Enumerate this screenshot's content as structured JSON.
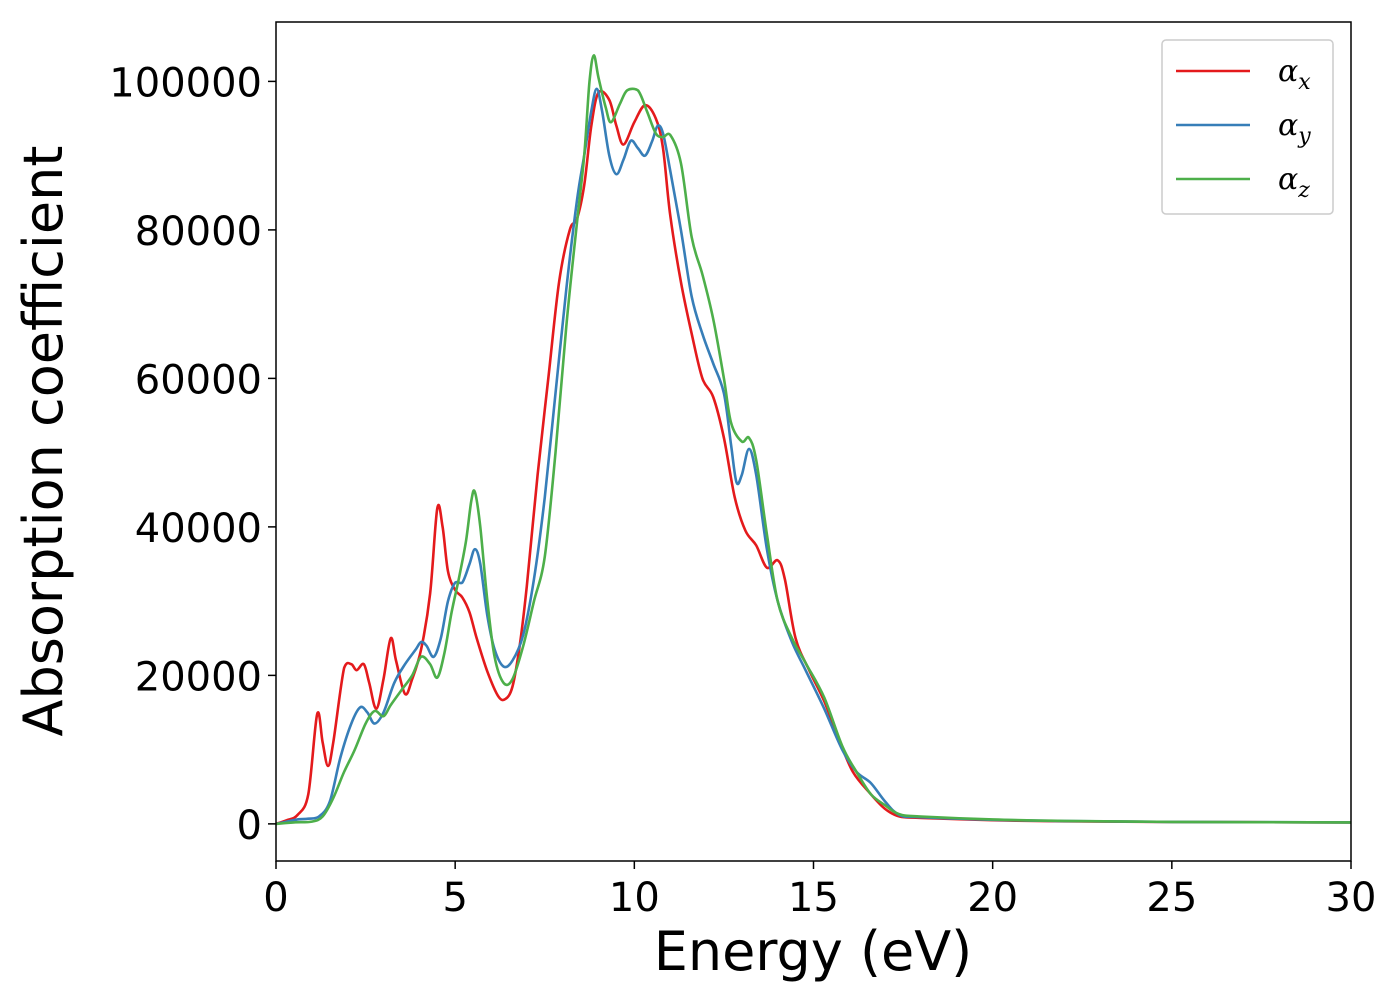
{
  "chart_data": {
    "type": "line",
    "xlabel": "Energy (eV)",
    "ylabel": "Absorption coefficient",
    "xlim": [
      0,
      30
    ],
    "ylim": [
      -5000,
      108000
    ],
    "xticks": [
      0,
      5,
      10,
      15,
      20,
      25,
      30
    ],
    "yticks": [
      0,
      20000,
      40000,
      60000,
      80000,
      100000
    ],
    "xtick_labels": [
      "0",
      "5",
      "10",
      "15",
      "20",
      "25",
      "30"
    ],
    "ytick_labels": [
      "0",
      "20000",
      "40000",
      "60000",
      "80000",
      "100000"
    ],
    "grid": false,
    "legend_position": "top-right",
    "series": [
      {
        "name": "α",
        "subscript": "x",
        "color": "#e41a1c",
        "points": [
          [
            0,
            0
          ],
          [
            0.3,
            500
          ],
          [
            0.6,
            1200
          ],
          [
            0.9,
            4000
          ],
          [
            1.15,
            14800
          ],
          [
            1.3,
            11000
          ],
          [
            1.45,
            7800
          ],
          [
            1.6,
            11000
          ],
          [
            1.9,
            21000
          ],
          [
            2.1,
            21500
          ],
          [
            2.25,
            20700
          ],
          [
            2.45,
            21500
          ],
          [
            2.6,
            19000
          ],
          [
            2.8,
            15500
          ],
          [
            3.0,
            19500
          ],
          [
            3.2,
            25000
          ],
          [
            3.35,
            22000
          ],
          [
            3.6,
            17500
          ],
          [
            3.8,
            19500
          ],
          [
            4.05,
            23500
          ],
          [
            4.3,
            31000
          ],
          [
            4.5,
            42500
          ],
          [
            4.65,
            40000
          ],
          [
            4.8,
            34000
          ],
          [
            5.0,
            31500
          ],
          [
            5.2,
            30500
          ],
          [
            5.4,
            28500
          ],
          [
            5.6,
            25000
          ],
          [
            5.9,
            20500
          ],
          [
            6.2,
            17200
          ],
          [
            6.4,
            16800
          ],
          [
            6.6,
            18500
          ],
          [
            6.8,
            24000
          ],
          [
            7.0,
            32000
          ],
          [
            7.3,
            47000
          ],
          [
            7.6,
            60000
          ],
          [
            7.9,
            73000
          ],
          [
            8.2,
            80000
          ],
          [
            8.4,
            81500
          ],
          [
            8.6,
            86000
          ],
          [
            8.8,
            94000
          ],
          [
            9.0,
            98500
          ],
          [
            9.3,
            97500
          ],
          [
            9.5,
            94000
          ],
          [
            9.7,
            91500
          ],
          [
            10.0,
            94500
          ],
          [
            10.3,
            96800
          ],
          [
            10.6,
            95000
          ],
          [
            10.8,
            91000
          ],
          [
            11.0,
            82000
          ],
          [
            11.3,
            73000
          ],
          [
            11.6,
            66000
          ],
          [
            11.9,
            60000
          ],
          [
            12.2,
            57500
          ],
          [
            12.5,
            52000
          ],
          [
            12.8,
            44000
          ],
          [
            13.1,
            39500
          ],
          [
            13.4,
            37500
          ],
          [
            13.7,
            34500
          ],
          [
            14.0,
            35500
          ],
          [
            14.2,
            33000
          ],
          [
            14.5,
            25000
          ],
          [
            14.9,
            20500
          ],
          [
            15.3,
            16500
          ],
          [
            15.7,
            11500
          ],
          [
            16.1,
            7000
          ],
          [
            16.6,
            4000
          ],
          [
            17.0,
            2000
          ],
          [
            17.4,
            1000
          ],
          [
            18,
            800
          ],
          [
            20,
            500
          ],
          [
            22,
            350
          ],
          [
            25,
            250
          ],
          [
            30,
            200
          ]
        ]
      },
      {
        "name": "α",
        "subscript": "y",
        "color": "#377eb8",
        "points": [
          [
            0,
            0
          ],
          [
            0.3,
            300
          ],
          [
            0.6,
            600
          ],
          [
            0.9,
            700
          ],
          [
            1.2,
            1000
          ],
          [
            1.5,
            3000
          ],
          [
            1.8,
            9000
          ],
          [
            2.1,
            13500
          ],
          [
            2.35,
            15700
          ],
          [
            2.55,
            15000
          ],
          [
            2.75,
            13500
          ],
          [
            3.0,
            15000
          ],
          [
            3.3,
            19000
          ],
          [
            3.6,
            21500
          ],
          [
            3.9,
            23500
          ],
          [
            4.05,
            24500
          ],
          [
            4.2,
            24000
          ],
          [
            4.4,
            22500
          ],
          [
            4.6,
            25000
          ],
          [
            4.8,
            30000
          ],
          [
            5.0,
            32500
          ],
          [
            5.2,
            32500
          ],
          [
            5.4,
            35000
          ],
          [
            5.55,
            37000
          ],
          [
            5.7,
            35000
          ],
          [
            5.9,
            28000
          ],
          [
            6.1,
            23500
          ],
          [
            6.35,
            21200
          ],
          [
            6.6,
            22000
          ],
          [
            6.9,
            25500
          ],
          [
            7.2,
            33000
          ],
          [
            7.5,
            44000
          ],
          [
            7.8,
            58000
          ],
          [
            8.1,
            72000
          ],
          [
            8.4,
            84000
          ],
          [
            8.6,
            90000
          ],
          [
            8.8,
            96000
          ],
          [
            8.95,
            99000
          ],
          [
            9.1,
            96000
          ],
          [
            9.3,
            90000
          ],
          [
            9.5,
            87500
          ],
          [
            9.7,
            89500
          ],
          [
            9.9,
            92000
          ],
          [
            10.1,
            91000
          ],
          [
            10.3,
            90000
          ],
          [
            10.5,
            92000
          ],
          [
            10.65,
            94000
          ],
          [
            10.8,
            93000
          ],
          [
            11.0,
            88000
          ],
          [
            11.3,
            80000
          ],
          [
            11.6,
            71000
          ],
          [
            11.9,
            66000
          ],
          [
            12.2,
            62000
          ],
          [
            12.5,
            58000
          ],
          [
            12.7,
            51000
          ],
          [
            12.85,
            46000
          ],
          [
            13.0,
            47000
          ],
          [
            13.2,
            50500
          ],
          [
            13.4,
            47000
          ],
          [
            13.7,
            37000
          ],
          [
            14.0,
            30000
          ],
          [
            14.4,
            24500
          ],
          [
            14.8,
            20500
          ],
          [
            15.3,
            15500
          ],
          [
            15.8,
            10000
          ],
          [
            16.2,
            7000
          ],
          [
            16.6,
            5500
          ],
          [
            17.0,
            3000
          ],
          [
            17.4,
            1200
          ],
          [
            18,
            900
          ],
          [
            20,
            550
          ],
          [
            22,
            380
          ],
          [
            25,
            260
          ],
          [
            30,
            200
          ]
        ]
      },
      {
        "name": "α",
        "subscript": "z",
        "color": "#4daf4a",
        "points": [
          [
            0,
            0
          ],
          [
            0.5,
            200
          ],
          [
            1.0,
            300
          ],
          [
            1.3,
            1000
          ],
          [
            1.6,
            3500
          ],
          [
            1.9,
            7000
          ],
          [
            2.2,
            10000
          ],
          [
            2.5,
            13500
          ],
          [
            2.75,
            15200
          ],
          [
            3.0,
            14500
          ],
          [
            3.2,
            16000
          ],
          [
            3.5,
            18000
          ],
          [
            3.8,
            20000
          ],
          [
            4.05,
            22500
          ],
          [
            4.3,
            21500
          ],
          [
            4.5,
            19700
          ],
          [
            4.7,
            23000
          ],
          [
            4.9,
            28500
          ],
          [
            5.1,
            33000
          ],
          [
            5.3,
            38000
          ],
          [
            5.45,
            43500
          ],
          [
            5.55,
            44700
          ],
          [
            5.7,
            40000
          ],
          [
            5.9,
            30000
          ],
          [
            6.1,
            22500
          ],
          [
            6.35,
            19000
          ],
          [
            6.6,
            19500
          ],
          [
            6.9,
            24000
          ],
          [
            7.2,
            30000
          ],
          [
            7.5,
            36000
          ],
          [
            7.8,
            50000
          ],
          [
            8.1,
            67000
          ],
          [
            8.4,
            81000
          ],
          [
            8.6,
            90000
          ],
          [
            8.75,
            100000
          ],
          [
            8.87,
            103500
          ],
          [
            9.0,
            100500
          ],
          [
            9.2,
            96500
          ],
          [
            9.35,
            94500
          ],
          [
            9.6,
            97000
          ],
          [
            9.8,
            98800
          ],
          [
            10.1,
            98800
          ],
          [
            10.35,
            96000
          ],
          [
            10.6,
            93000
          ],
          [
            10.8,
            92500
          ],
          [
            11.0,
            92800
          ],
          [
            11.3,
            89000
          ],
          [
            11.6,
            79000
          ],
          [
            11.9,
            74000
          ],
          [
            12.2,
            68000
          ],
          [
            12.5,
            60000
          ],
          [
            12.7,
            54000
          ],
          [
            13.0,
            51500
          ],
          [
            13.2,
            52000
          ],
          [
            13.4,
            49000
          ],
          [
            13.7,
            39000
          ],
          [
            14.0,
            30000
          ],
          [
            14.4,
            25000
          ],
          [
            14.8,
            21500
          ],
          [
            15.3,
            17000
          ],
          [
            15.8,
            10500
          ],
          [
            16.2,
            7000
          ],
          [
            16.6,
            4000
          ],
          [
            17.0,
            2500
          ],
          [
            17.4,
            1300
          ],
          [
            18,
            1000
          ],
          [
            20,
            600
          ],
          [
            22,
            400
          ],
          [
            25,
            270
          ],
          [
            30,
            200
          ]
        ]
      }
    ]
  }
}
